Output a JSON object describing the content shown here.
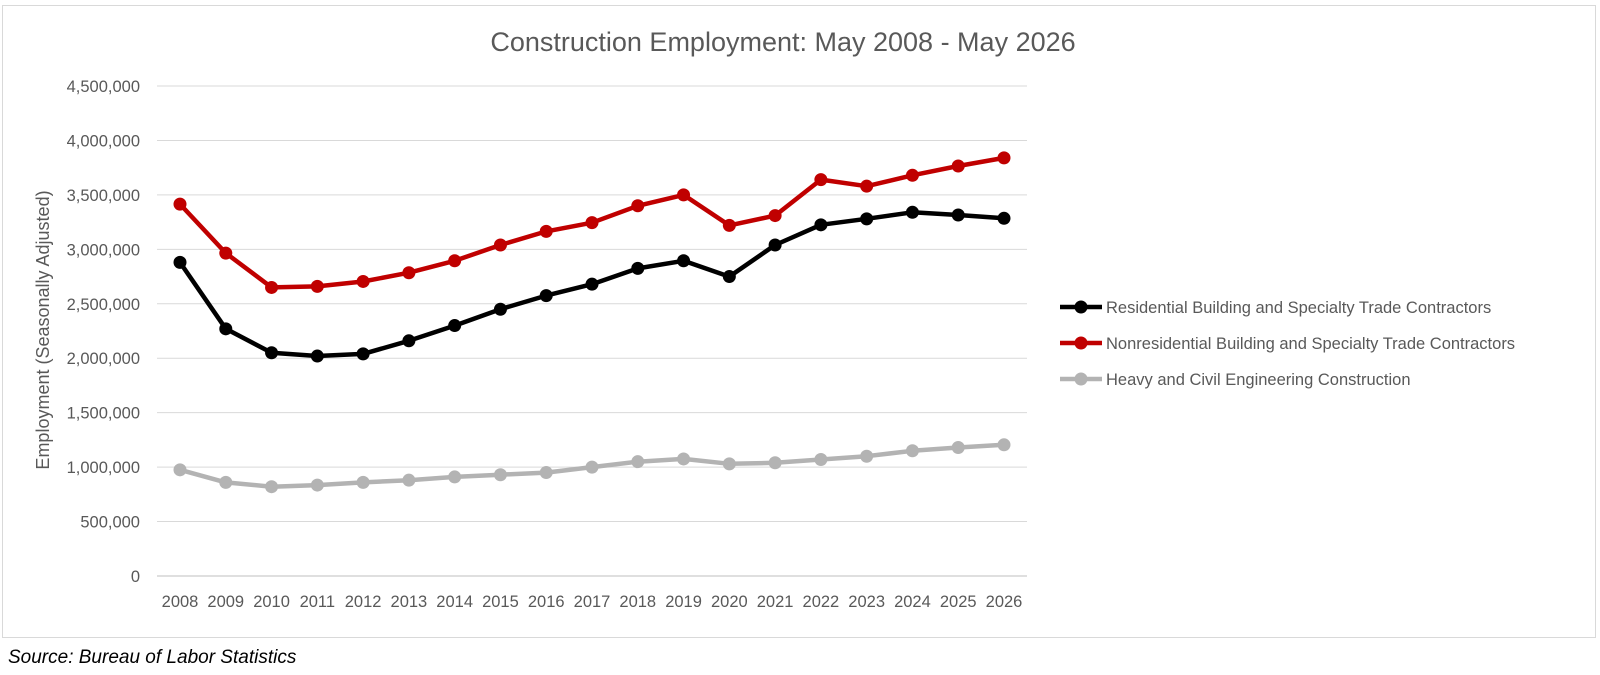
{
  "source_note": "Source: Bureau of Labor Statistics",
  "chart_data": {
    "type": "line",
    "title": "Construction Employment: May 2008 - May 2026",
    "ylabel": "Employment (Seasonally Adjusted)",
    "xlabel": "",
    "ylim": [
      0,
      4500000
    ],
    "ytick_step": 500000,
    "y_tick_labels": [
      "0",
      "500,000",
      "1,000,000",
      "1,500,000",
      "2,000,000",
      "2,500,000",
      "3,000,000",
      "3,500,000",
      "4,000,000",
      "4,500,000"
    ],
    "grid": true,
    "legend_position": "right",
    "categories": [
      "2008",
      "2009",
      "2010",
      "2011",
      "2012",
      "2013",
      "2014",
      "2015",
      "2016",
      "2017",
      "2018",
      "2019",
      "2020",
      "2021",
      "2022",
      "2023",
      "2024",
      "2025",
      "2026"
    ],
    "series": [
      {
        "name": "Residential Building and Specialty Trade Contractors",
        "color": "#000000",
        "values": [
          2880000,
          2270000,
          2050000,
          2020000,
          2040000,
          2160000,
          2300000,
          2450000,
          2575000,
          2680000,
          2825000,
          2895000,
          2750000,
          3040000,
          3225000,
          3280000,
          3340000,
          3315000,
          3285000
        ]
      },
      {
        "name": "Nonresidential Building and Specialty Trade Contractors",
        "color": "#c00000",
        "values": [
          3415000,
          2965000,
          2650000,
          2660000,
          2705000,
          2785000,
          2895000,
          3040000,
          3165000,
          3245000,
          3400000,
          3500000,
          3220000,
          3310000,
          3640000,
          3580000,
          3680000,
          3765000,
          3840000
        ]
      },
      {
        "name": "Heavy and Civil Engineering Construction",
        "color": "#b3b3b3",
        "values": [
          975000,
          860000,
          820000,
          835000,
          860000,
          880000,
          910000,
          930000,
          950000,
          1000000,
          1050000,
          1075000,
          1030000,
          1040000,
          1070000,
          1100000,
          1150000,
          1180000,
          1205000
        ]
      }
    ]
  }
}
